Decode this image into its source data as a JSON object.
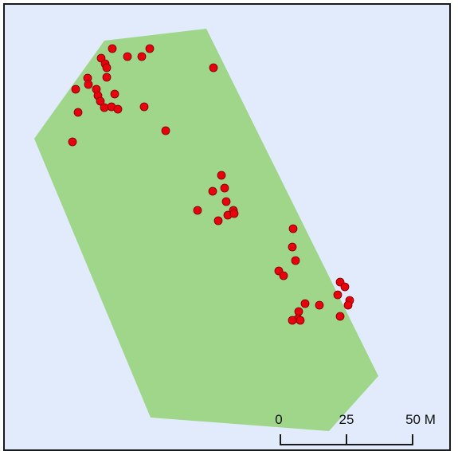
{
  "map": {
    "background_color": "#e1ebfc",
    "region_fill_color": "#9fd68a",
    "point_fill_color": "#e8020b",
    "point_stroke_color": "#7a0000"
  },
  "scale_bar": {
    "tick_labels": [
      "0",
      "25",
      "50 M"
    ]
  }
}
